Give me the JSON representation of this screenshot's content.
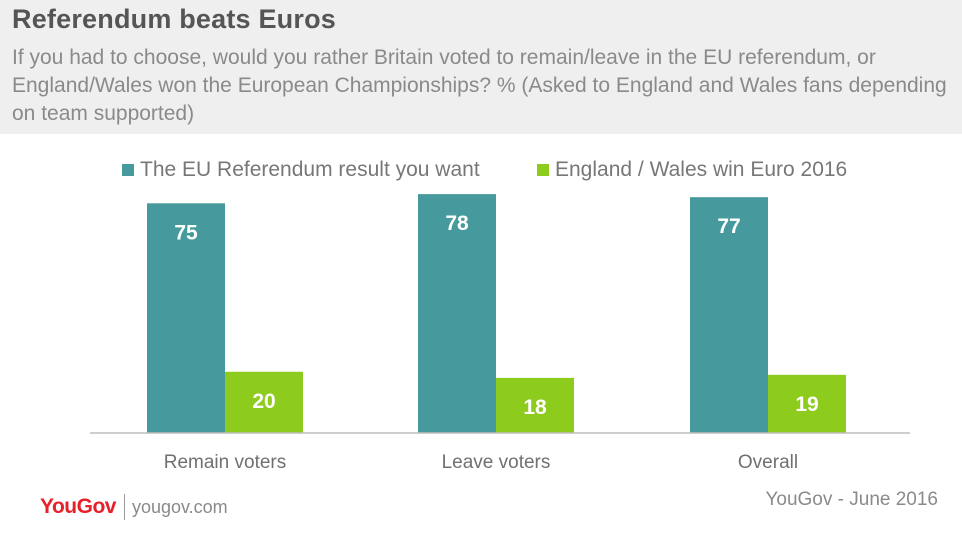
{
  "title": "Referendum beats Euros",
  "subtitle": "If you had to choose, would you rather Britain voted to remain/leave in the EU referendum, or England/Wales won the European Championships? % (Asked to England and Wales fans depending on team supported)",
  "legend": [
    {
      "label": "The EU Referendum result you want",
      "color": "#469a9d"
    },
    {
      "label": "England / Wales win Euro 2016",
      "color": "#8dcb1d"
    }
  ],
  "chart_data": {
    "type": "bar",
    "title": "Referendum beats Euros",
    "categories": [
      "Remain voters",
      "Leave voters",
      "Overall"
    ],
    "series": [
      {
        "name": "The EU Referendum result you want",
        "values": [
          75,
          78,
          77
        ],
        "color": "#469a9d"
      },
      {
        "name": "England / Wales win Euro 2016",
        "values": [
          20,
          18,
          19
        ],
        "color": "#8dcb1d"
      }
    ],
    "xlabel": "",
    "ylabel": "",
    "ylim": [
      0,
      80
    ],
    "legend_position": "top",
    "grid": false
  },
  "footer": {
    "logo": "YouGov",
    "site": "yougov.com",
    "source": "YouGov - June 2016"
  }
}
